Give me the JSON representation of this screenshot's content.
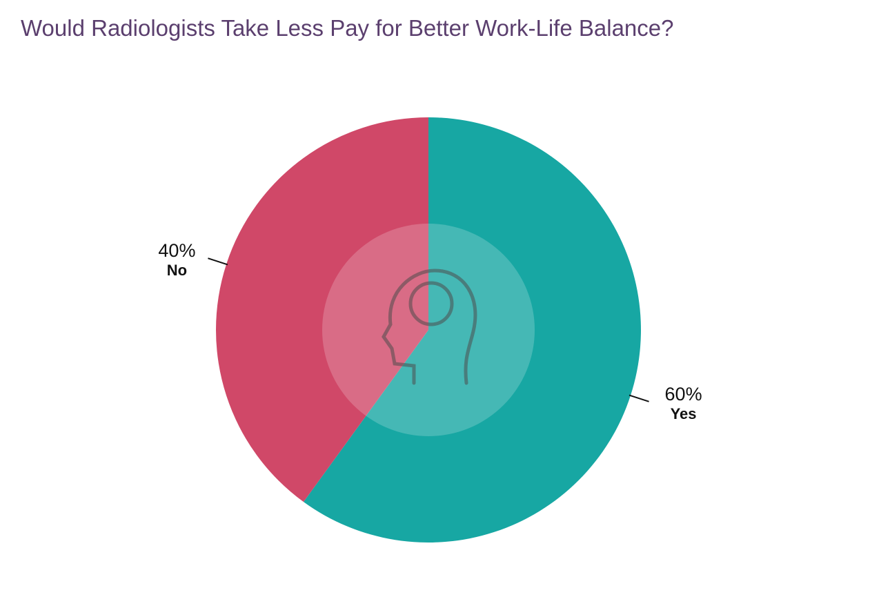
{
  "chart_data": {
    "type": "pie",
    "title": "Would Radiologists Take Less Pay for Better Work-Life Balance?",
    "categories": [
      "Yes",
      "No"
    ],
    "values": [
      60,
      40
    ],
    "value_labels": [
      "60%",
      "40%"
    ],
    "colors": [
      "#17a7a3",
      "#d04868"
    ]
  }
}
